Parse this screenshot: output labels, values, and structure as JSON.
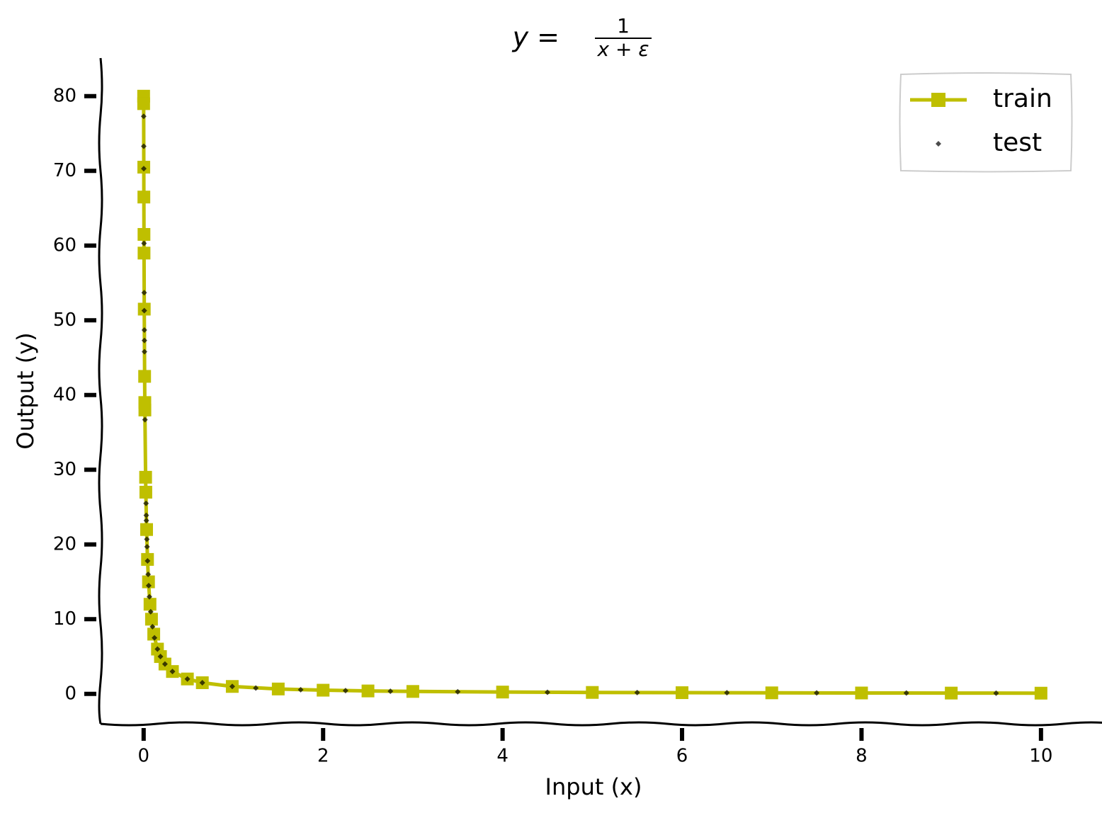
{
  "chart_data": {
    "type": "line",
    "title": {
      "lhs": "y =",
      "numerator": "1",
      "denominator": "x + ε"
    },
    "xlabel": "Input (x)",
    "ylabel": "Output (y)",
    "xlim": [
      -0.48,
      10.53
    ],
    "ylim": [
      -4,
      85.1
    ],
    "xticks": [
      0,
      2,
      4,
      6,
      8,
      10
    ],
    "yticks": [
      0,
      10,
      20,
      30,
      40,
      50,
      60,
      70,
      80
    ],
    "grid": false,
    "legend": "upper right",
    "series": [
      {
        "name": "train",
        "type": "line",
        "marker": "square",
        "color": "#bfbf00",
        "x": [
          0.0,
          0.0002,
          0.0017,
          0.0025,
          0.0038,
          0.0044,
          0.0069,
          0.011,
          0.0131,
          0.0138,
          0.022,
          0.0245,
          0.033,
          0.0431,
          0.0542,
          0.0708,
          0.0875,
          0.1125,
          0.154,
          0.1875,
          0.2375,
          0.321,
          0.4875,
          0.654,
          0.9875,
          1.5,
          2,
          2.5,
          3,
          4,
          5,
          6,
          7,
          8,
          9,
          10
        ],
        "values": [
          80,
          79,
          70.5,
          66.5,
          61.5,
          59,
          51.5,
          42.5,
          39,
          38,
          29,
          27,
          22,
          18,
          15,
          12,
          10,
          8,
          6,
          5,
          4,
          3,
          2,
          1.5,
          1,
          0.661,
          0.497,
          0.398,
          0.332,
          0.249,
          0.1995,
          0.1663,
          0.1426,
          0.1248,
          0.111,
          0.0999
        ]
      },
      {
        "name": "test",
        "type": "scatter",
        "marker": "diamond",
        "color": "#000000",
        "x": [
          0.0004,
          0.0011,
          0.0017,
          0.0041,
          0.0061,
          0.007,
          0.008,
          0.0086,
          0.0093,
          0.0147,
          0.0267,
          0.0293,
          0.0306,
          0.0358,
          0.0383,
          0.0437,
          0.05,
          0.0565,
          0.0644,
          0.0784,
          0.0986,
          0.1208,
          0.154,
          0.1875,
          0.2375,
          0.321,
          0.4875,
          0.654,
          0.9875,
          1.25,
          1.75,
          2.25,
          2.75,
          3.5,
          4.5,
          5.5,
          6.5,
          7.5,
          8.5,
          9.5
        ],
        "values": [
          77.3,
          73.3,
          70.3,
          60.3,
          53.7,
          51.3,
          48.7,
          47.3,
          45.8,
          36.7,
          25.5,
          23.9,
          23.2,
          20.7,
          19.7,
          17.8,
          16,
          14.5,
          13,
          11,
          9,
          7.5,
          6,
          5,
          4,
          3,
          2,
          1.5,
          1,
          0.792,
          0.567,
          0.442,
          0.362,
          0.285,
          0.2216,
          0.1814,
          0.1535,
          0.1331,
          0.1175,
          0.1051
        ]
      }
    ]
  }
}
